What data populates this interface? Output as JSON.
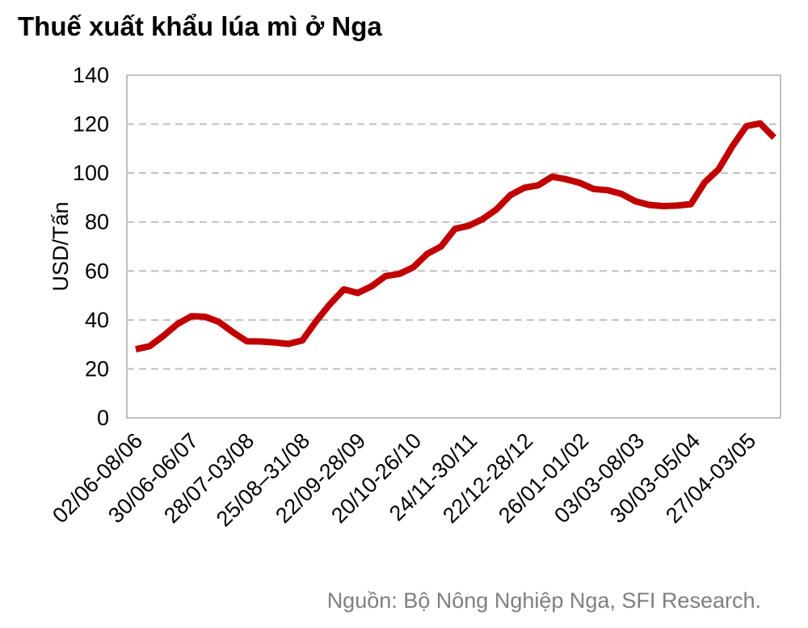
{
  "chart_data": {
    "type": "line",
    "title": "Thuế xuất khẩu lúa mì ở Nga",
    "ylabel": "USD/Tấn",
    "xlabel": "",
    "ylim": [
      0,
      140
    ],
    "yticks": [
      0,
      20,
      40,
      60,
      80,
      100,
      120,
      140
    ],
    "grid": "horizontal-dashed",
    "x_tick_labels": [
      "02/06-08/06",
      "30/06-06/07",
      "28/07-03/08",
      "25/08–31/08",
      "22/09-28/09",
      "20/10-26/10",
      "24/11-30/11",
      "22/12-28/12",
      "26/01-01/02",
      "03/03-08/03",
      "30/03-05/04",
      "27/04-03/05"
    ],
    "series": [
      {
        "color": "#c00000",
        "values": [
          28,
          29.3,
          33.5,
          38.3,
          41.5,
          41.3,
          39.2,
          35,
          31.3,
          31.2,
          30.8,
          30.2,
          31.6,
          39.5,
          46.5,
          52.5,
          51,
          53.8,
          57.9,
          58.8,
          61.5,
          67,
          70,
          77.2,
          78.5,
          81.2,
          85.2,
          91,
          94,
          95,
          98.5,
          97.5,
          96,
          93.5,
          93,
          91.5,
          88.5,
          87,
          86.5,
          86.7,
          87.3,
          96.2,
          101.5,
          111,
          119.2,
          120.3,
          114.5
        ]
      }
    ]
  },
  "source": "Nguồn: Bộ Nông Nghiệp Nga, SFI Research."
}
